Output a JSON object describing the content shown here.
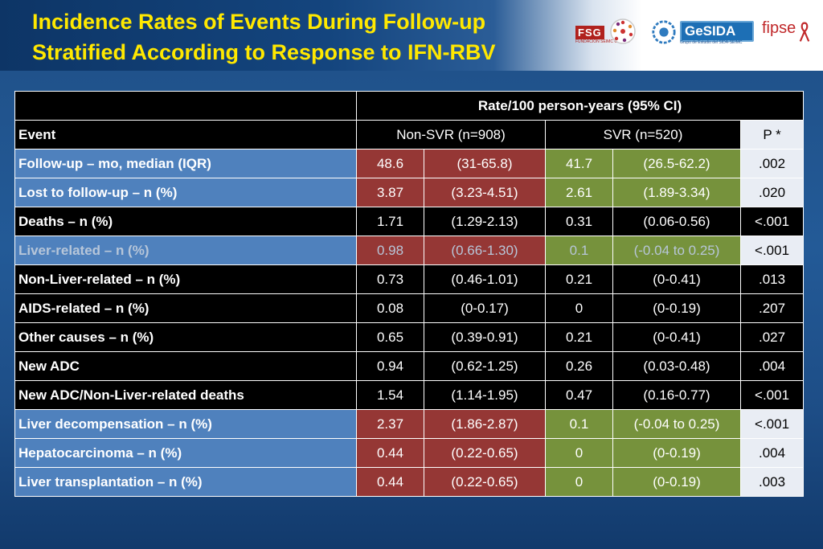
{
  "slide": {
    "title_line1": "Incidence Rates of Events During Follow-up",
    "title_line2": "Stratified According to Response to IFN-RBV"
  },
  "logos": {
    "fsg": "FSG",
    "fsg_sub": "FUNDACIÓN SEIMC GESIDA",
    "gesida": "GeSIDA",
    "gesida_sub": "Grupo de Estudio del SIDA-SEIMC",
    "fipse": "fipse"
  },
  "colors": {
    "title": "#ffe800",
    "nonsvr_cell": "#953735",
    "svr_cell": "#76923c",
    "event_blue": "#4f81bd",
    "black": "#000000"
  },
  "table": {
    "group_header": "Rate/100 person-years (95% CI)",
    "columns": {
      "event": "Event",
      "nonsvr": "Non-SVR  (n=908)",
      "svr": "SVR (n=520)",
      "p": "P *"
    },
    "rows": [
      {
        "event": "Follow-up – mo, median (IQR)",
        "ns_rate": "48.6",
        "ns_ci": "(31-65.8)",
        "s_rate": "41.7",
        "s_ci": "(26.5-62.2)",
        "p": ".002"
      },
      {
        "event": "Lost to follow-up – n (%)",
        "ns_rate": "3.87",
        "ns_ci": "(3.23-4.51)",
        "s_rate": "2.61",
        "s_ci": "(1.89-3.34)",
        "p": ".020"
      },
      {
        "event": "Deaths – n (%)",
        "ns_rate": "1.71",
        "ns_ci": "(1.29-2.13)",
        "s_rate": "0.31",
        "s_ci": "(0.06-0.56)",
        "p": "<.001"
      },
      {
        "event": "Liver-related – n (%)",
        "ns_rate": "0.98",
        "ns_ci": "(0.66-1.30)",
        "s_rate": "0.1",
        "s_ci": "(-0.04 to 0.25)",
        "p": "<.001"
      },
      {
        "event": "Non-Liver-related – n (%)",
        "ns_rate": "0.73",
        "ns_ci": "(0.46-1.01)",
        "s_rate": "0.21",
        "s_ci": "(0-0.41)",
        "p": ".013"
      },
      {
        "event": "AIDS-related – n (%)",
        "ns_rate": "0.08",
        "ns_ci": "(0-0.17)",
        "s_rate": "0",
        "s_ci": "(0-0.19)",
        "p": ".207"
      },
      {
        "event": "Other causes – n (%)",
        "ns_rate": "0.65",
        "ns_ci": "(0.39-0.91)",
        "s_rate": "0.21",
        "s_ci": "(0-0.41)",
        "p": ".027"
      },
      {
        "event": "New ADC",
        "ns_rate": "0.94",
        "ns_ci": "(0.62-1.25)",
        "s_rate": "0.26",
        "s_ci": "(0.03-0.48)",
        "p": ".004"
      },
      {
        "event": "New ADC/Non-Liver-related deaths",
        "ns_rate": "1.54",
        "ns_ci": "(1.14-1.95)",
        "s_rate": "0.47",
        "s_ci": "(0.16-0.77)",
        "p": "<.001"
      },
      {
        "event": "Liver decompensation – n (%)",
        "ns_rate": "2.37",
        "ns_ci": "(1.86-2.87)",
        "s_rate": "0.1",
        "s_ci": "(-0.04 to 0.25)",
        "p": "<.001"
      },
      {
        "event": "Hepatocarcinoma – n (%)",
        "ns_rate": "0.44",
        "ns_ci": "(0.22-0.65)",
        "s_rate": "0",
        "s_ci": "(0-0.19)",
        "p": ".004"
      },
      {
        "event": "Liver transplantation – n (%)",
        "ns_rate": "0.44",
        "ns_ci": "(0.22-0.65)",
        "s_rate": "0",
        "s_ci": "(0-0.19)",
        "p": ".003"
      }
    ]
  }
}
